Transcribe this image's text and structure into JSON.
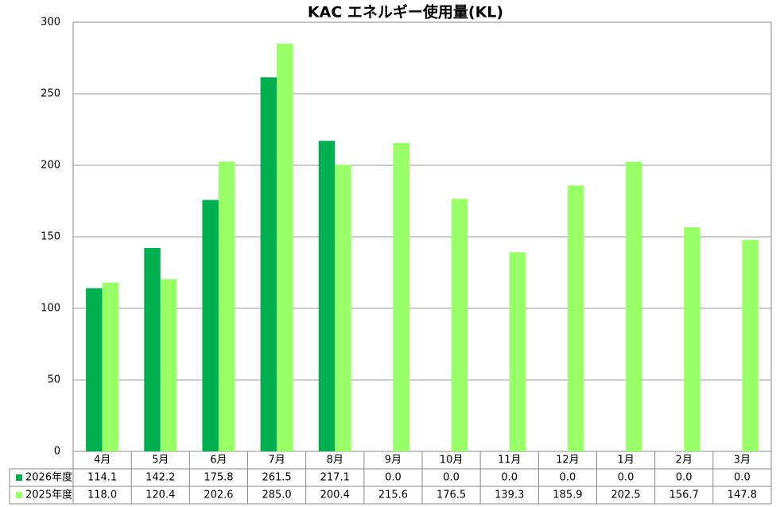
{
  "chart_data": {
    "type": "bar",
    "title": "KAC エネルギー使用量(KL)",
    "categories": [
      "4月",
      "5月",
      "6月",
      "7月",
      "8月",
      "9月",
      "10月",
      "11月",
      "12月",
      "1月",
      "2月",
      "3月"
    ],
    "series": [
      {
        "name": "2026年度",
        "color": "#00b050",
        "values": [
          114.1,
          142.2,
          175.8,
          261.5,
          217.1,
          0,
          0,
          0,
          0,
          0,
          0,
          0
        ],
        "value_labels": [
          "114.1",
          "142.2",
          "175.8",
          "261.5",
          "217.1",
          "0.0",
          "0.0",
          "0.0",
          "0.0",
          "0.0",
          "0.0",
          "0.0"
        ]
      },
      {
        "name": "2025年度",
        "color": "#99ff66",
        "values": [
          118,
          120.4,
          202.6,
          285,
          200.4,
          215.6,
          176.5,
          139.3,
          185.9,
          202.5,
          156.7,
          147.8
        ],
        "value_labels": [
          "118.0",
          "120.4",
          "202.6",
          "285.0",
          "200.4",
          "215.6",
          "176.5",
          "139.3",
          "185.9",
          "202.5",
          "156.7",
          "147.8"
        ]
      }
    ],
    "ylim": [
      0,
      300
    ],
    "yticks": [
      0,
      50,
      100,
      150,
      200,
      250,
      300
    ],
    "grid": true
  }
}
